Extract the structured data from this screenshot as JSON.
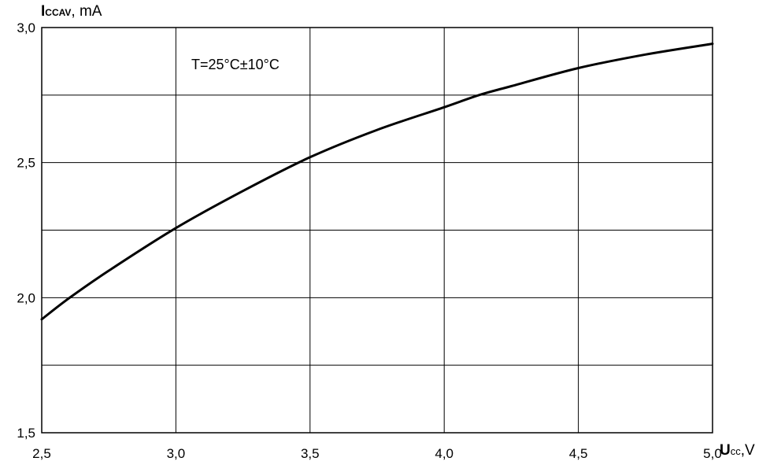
{
  "chart_data": {
    "type": "line",
    "title": "",
    "annotation": "T=25°C±10°C",
    "xlabel": {
      "main": "U",
      "sub": "cc",
      "unit": ",V"
    },
    "ylabel": {
      "main": "I",
      "sub": "CCAV",
      "unit": ", mA"
    },
    "xlim": [
      2.5,
      5.0
    ],
    "ylim": [
      1.5,
      3.0
    ],
    "x_ticks": [
      "2,5",
      "3,0",
      "3,5",
      "4,0",
      "4,5",
      "5,0"
    ],
    "y_ticks": [
      "1,5",
      "2,0",
      "2,5",
      "3,0"
    ],
    "x_grid": [
      2.5,
      3.0,
      3.5,
      4.0,
      4.5,
      5.0
    ],
    "y_grid": [
      1.5,
      1.75,
      2.0,
      2.25,
      2.5,
      2.75,
      3.0
    ],
    "grid": true,
    "legend": "none",
    "line_color": "#000000",
    "series": [
      {
        "x": [
          2.5,
          2.6,
          2.75,
          3.0,
          3.25,
          3.5,
          3.75,
          4.0,
          4.13,
          4.25,
          4.5,
          4.75,
          5.0
        ],
        "y": [
          1.92,
          1.997,
          2.1,
          2.258,
          2.395,
          2.52,
          2.621,
          2.705,
          2.75,
          2.783,
          2.85,
          2.9,
          2.94
        ]
      }
    ]
  }
}
